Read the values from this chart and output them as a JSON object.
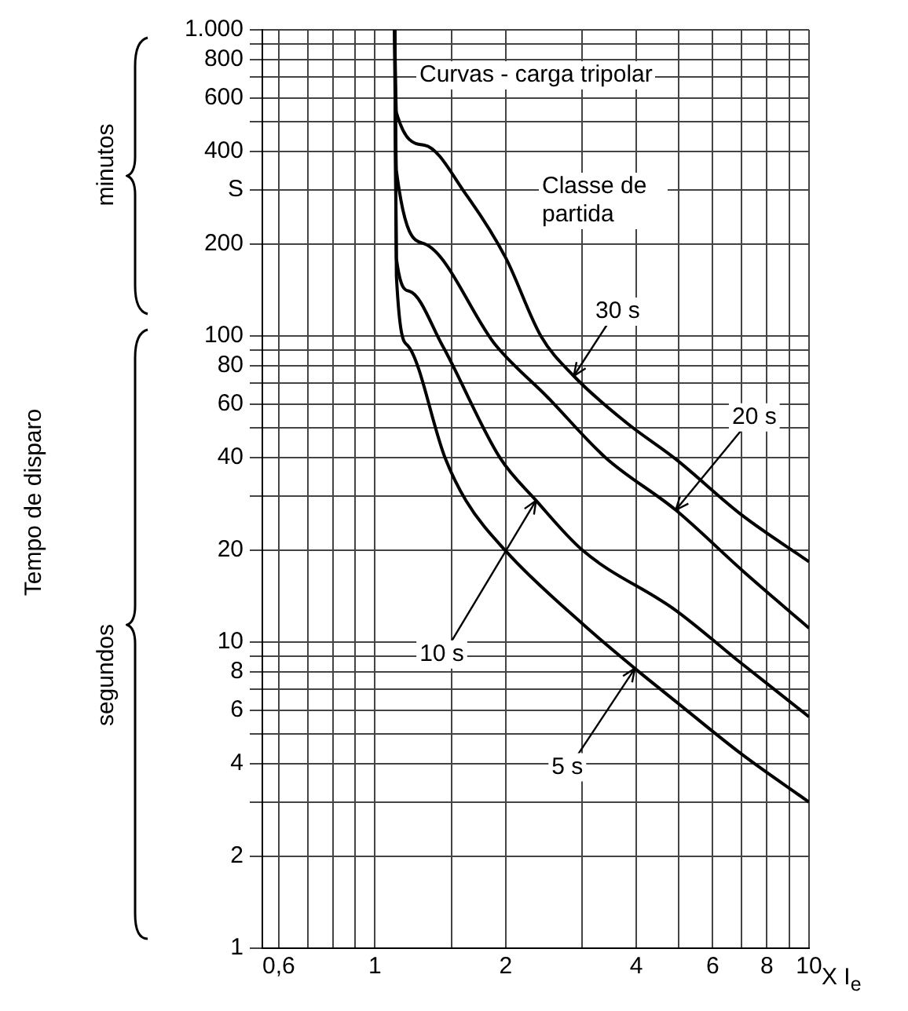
{
  "chart_data": {
    "type": "line",
    "xlabel": "X I$_{e}$",
    "log": "xy",
    "grid": true,
    "legend": false,
    "marker": "none",
    "line_style": "solid",
    "xlim": [
      0.55,
      10
    ],
    "xticks": [
      {
        "value": 0.6,
        "label": "0,6"
      },
      {
        "value": 0.7,
        "label": null
      },
      {
        "value": 0.8,
        "label": null
      },
      {
        "value": 0.9,
        "label": null
      },
      1,
      {
        "value": 1.5,
        "label": null
      },
      2,
      {
        "value": 3,
        "label": null
      },
      4,
      {
        "value": 5,
        "label": null
      },
      6,
      {
        "value": 7,
        "label": null
      },
      8,
      {
        "value": 9,
        "label": null
      },
      10
    ],
    "ylim": [
      1,
      1000
    ],
    "yticks": [
      1,
      2,
      {
        "value": 3,
        "label": null
      },
      4,
      {
        "value": 5,
        "label": null
      },
      6,
      {
        "value": 7,
        "label": null
      },
      8,
      {
        "value": 9,
        "label": null
      },
      10,
      20,
      {
        "value": 30,
        "label": null
      },
      40,
      {
        "value": 50,
        "label": null
      },
      60,
      {
        "value": 70,
        "label": null
      },
      80,
      {
        "value": 90,
        "label": null
      },
      100,
      200,
      {
        "value": 300,
        "label": "S"
      },
      400,
      {
        "value": 500,
        "label": null
      },
      600,
      {
        "value": 700,
        "label": null
      },
      800,
      {
        "value": 900,
        "label": null
      },
      {
        "value": 1000,
        "label": "1.000"
      }
    ],
    "series": [
      {
        "color": "#000000",
        "x": [
          1.11,
          1.12,
          1.3,
          1.62,
          2.0,
          2.41,
          2.87,
          3.8,
          4.93,
          7,
          10
        ],
        "values": [
          1000,
          537,
          420,
          290,
          180,
          100,
          74,
          52,
          39.6,
          26,
          18.3
        ]
      },
      {
        "color": "#000000",
        "x": [
          1.11,
          1.12,
          1.3,
          1.9,
          2.5,
          3.4,
          4.93,
          7,
          10
        ],
        "values": [
          1000,
          347,
          200,
          93,
          63,
          40,
          27,
          17.2,
          11.1
        ]
      },
      {
        "color": "#000000",
        "x": [
          1.11,
          1.12,
          1.2,
          1.43,
          1.94,
          2.35,
          3,
          4.93,
          7,
          10
        ],
        "values": [
          1000,
          179,
          140,
          93,
          40,
          29,
          20,
          12.7,
          8.5,
          5.7
        ]
      },
      {
        "color": "#000000",
        "x": [
          1.11,
          1.12,
          1.19,
          1.45,
          1.62,
          2.01,
          3,
          3.97,
          4.93,
          7,
          10
        ],
        "values": [
          1000,
          157,
          93,
          40,
          29,
          19.7,
          11.5,
          8.2,
          6.4,
          4.3,
          3.0
        ]
      }
    ],
    "annotations": [
      "Curvas - carga tripolar",
      "Classe de partida",
      "minutos",
      "segundos",
      "Tempo de disparo",
      {
        "text": "30 s",
        "x": 2.87,
        "y": 74
      },
      {
        "text": "20 s",
        "x": 4.93,
        "y": 27
      },
      {
        "text": "10 s",
        "x": 2.35,
        "y": 29
      },
      {
        "text": "5 s",
        "x": 3.97,
        "y": 8.2
      }
    ]
  }
}
